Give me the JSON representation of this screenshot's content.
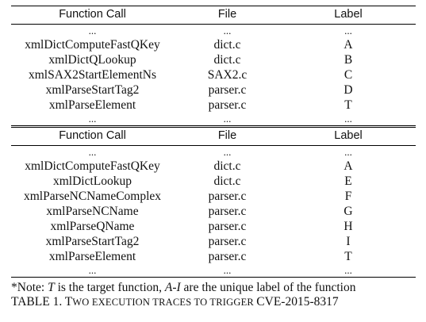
{
  "headers": {
    "function_call": "Function Call",
    "file": "File",
    "label": "Label"
  },
  "ellipsis": "...",
  "trace1": [
    {
      "fn": "xmlDictComputeFastQKey",
      "file": "dict.c",
      "label": "A"
    },
    {
      "fn": "xmlDictQLookup",
      "file": "dict.c",
      "label": "B"
    },
    {
      "fn": "xmlSAX2StartElementNs",
      "file": "SAX2.c",
      "label": "C"
    },
    {
      "fn": "xmlParseStartTag2",
      "file": "parser.c",
      "label": "D"
    },
    {
      "fn": "xmlParseElement",
      "file": "parser.c",
      "label": "T"
    }
  ],
  "trace2": [
    {
      "fn": "xmlDictComputeFastQKey",
      "file": "dict.c",
      "label": "A"
    },
    {
      "fn": "xmlDictLookup",
      "file": "dict.c",
      "label": "E"
    },
    {
      "fn": "xmlParseNCNameComplex",
      "file": "parser.c",
      "label": "F"
    },
    {
      "fn": "xmlParseNCName",
      "file": "parser.c",
      "label": "G"
    },
    {
      "fn": "xmlParseQName",
      "file": "parser.c",
      "label": "H"
    },
    {
      "fn": "xmlParseStartTag2",
      "file": "parser.c",
      "label": "I"
    },
    {
      "fn": "xmlParseElement",
      "file": "parser.c",
      "label": "T"
    }
  ],
  "note": {
    "prefix": "*Note: ",
    "t": "T",
    "mid": " is the target function, ",
    "ai": "A-I",
    "suffix": " are the unique label of the function"
  },
  "caption": {
    "prefix": "TABLE 1. T",
    "sc1": "WO EXECUTION TRACES TO TRIGGER ",
    "cve": "CVE-2015-8317"
  }
}
